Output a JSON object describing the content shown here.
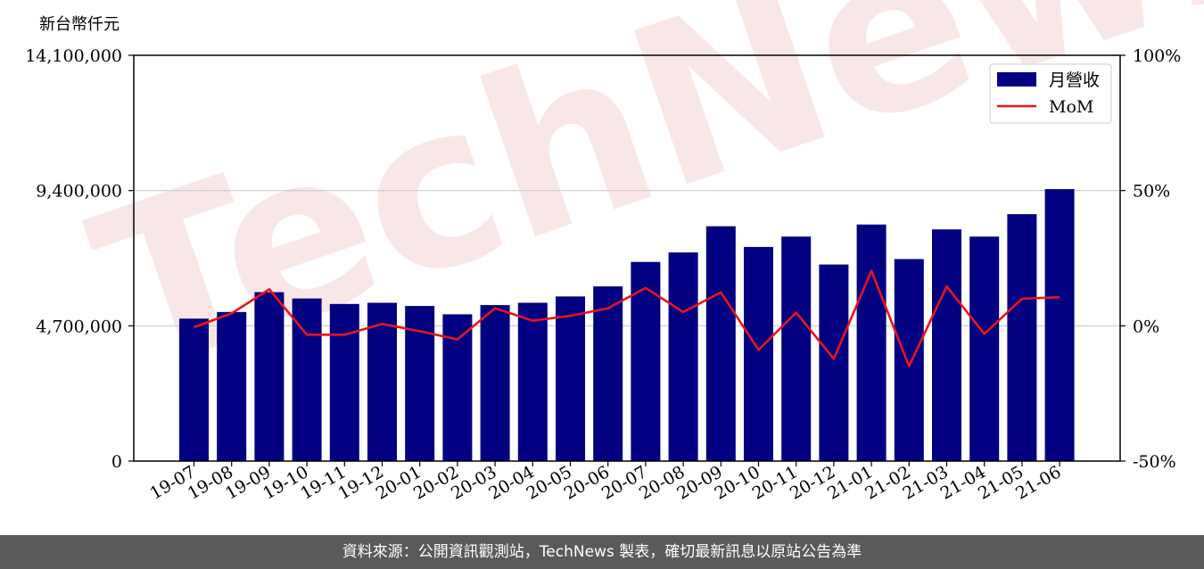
{
  "chart_data": {
    "type": "bar",
    "watermark": "TechNews",
    "unit_label": "新台幣仟元",
    "categories": [
      "19-07",
      "19-08",
      "19-09",
      "19-10",
      "19-11",
      "19-12",
      "20-01",
      "20-02",
      "20-03",
      "20-04",
      "20-05",
      "20-06",
      "20-07",
      "20-08",
      "20-09",
      "20-10",
      "20-11",
      "20-12",
      "21-01",
      "21-02",
      "21-03",
      "21-04",
      "21-05",
      "21-06"
    ],
    "series": [
      {
        "name": "月營收",
        "type": "bar",
        "axis": "left",
        "color": "#000080",
        "values": [
          4950000,
          5180000,
          5870000,
          5650000,
          5460000,
          5500000,
          5390000,
          5100000,
          5420000,
          5500000,
          5720000,
          6070000,
          6920000,
          7250000,
          8160000,
          7440000,
          7800000,
          6830000,
          8220000,
          7020000,
          8050000,
          7800000,
          8580000,
          9450000
        ]
      },
      {
        "name": "MoM",
        "type": "line",
        "axis": "right",
        "color": "#e8141c",
        "values": [
          -0.5,
          4.6,
          13.5,
          -3.3,
          -3.3,
          0.7,
          -2.0,
          -5.0,
          6.5,
          1.9,
          3.7,
          6.5,
          14.0,
          5.1,
          12.4,
          -8.9,
          4.9,
          -12.2,
          20.3,
          -14.9,
          14.6,
          -3.0,
          10.0,
          10.6
        ]
      }
    ],
    "y_left": {
      "ylim": [
        0,
        14100000
      ],
      "ticks": [
        "0",
        "4,700,000",
        "9,400,000",
        "14,100,000"
      ]
    },
    "y_right": {
      "ylim": [
        -50,
        100
      ],
      "ticks": [
        "-50%",
        "0%",
        "50%",
        "100%"
      ]
    },
    "grid": true,
    "legend_position": "top-right"
  },
  "footer": {
    "text": "資料來源：公開資訊觀測站，TechNews 製表，確切最新訊息以原站公告為準"
  }
}
